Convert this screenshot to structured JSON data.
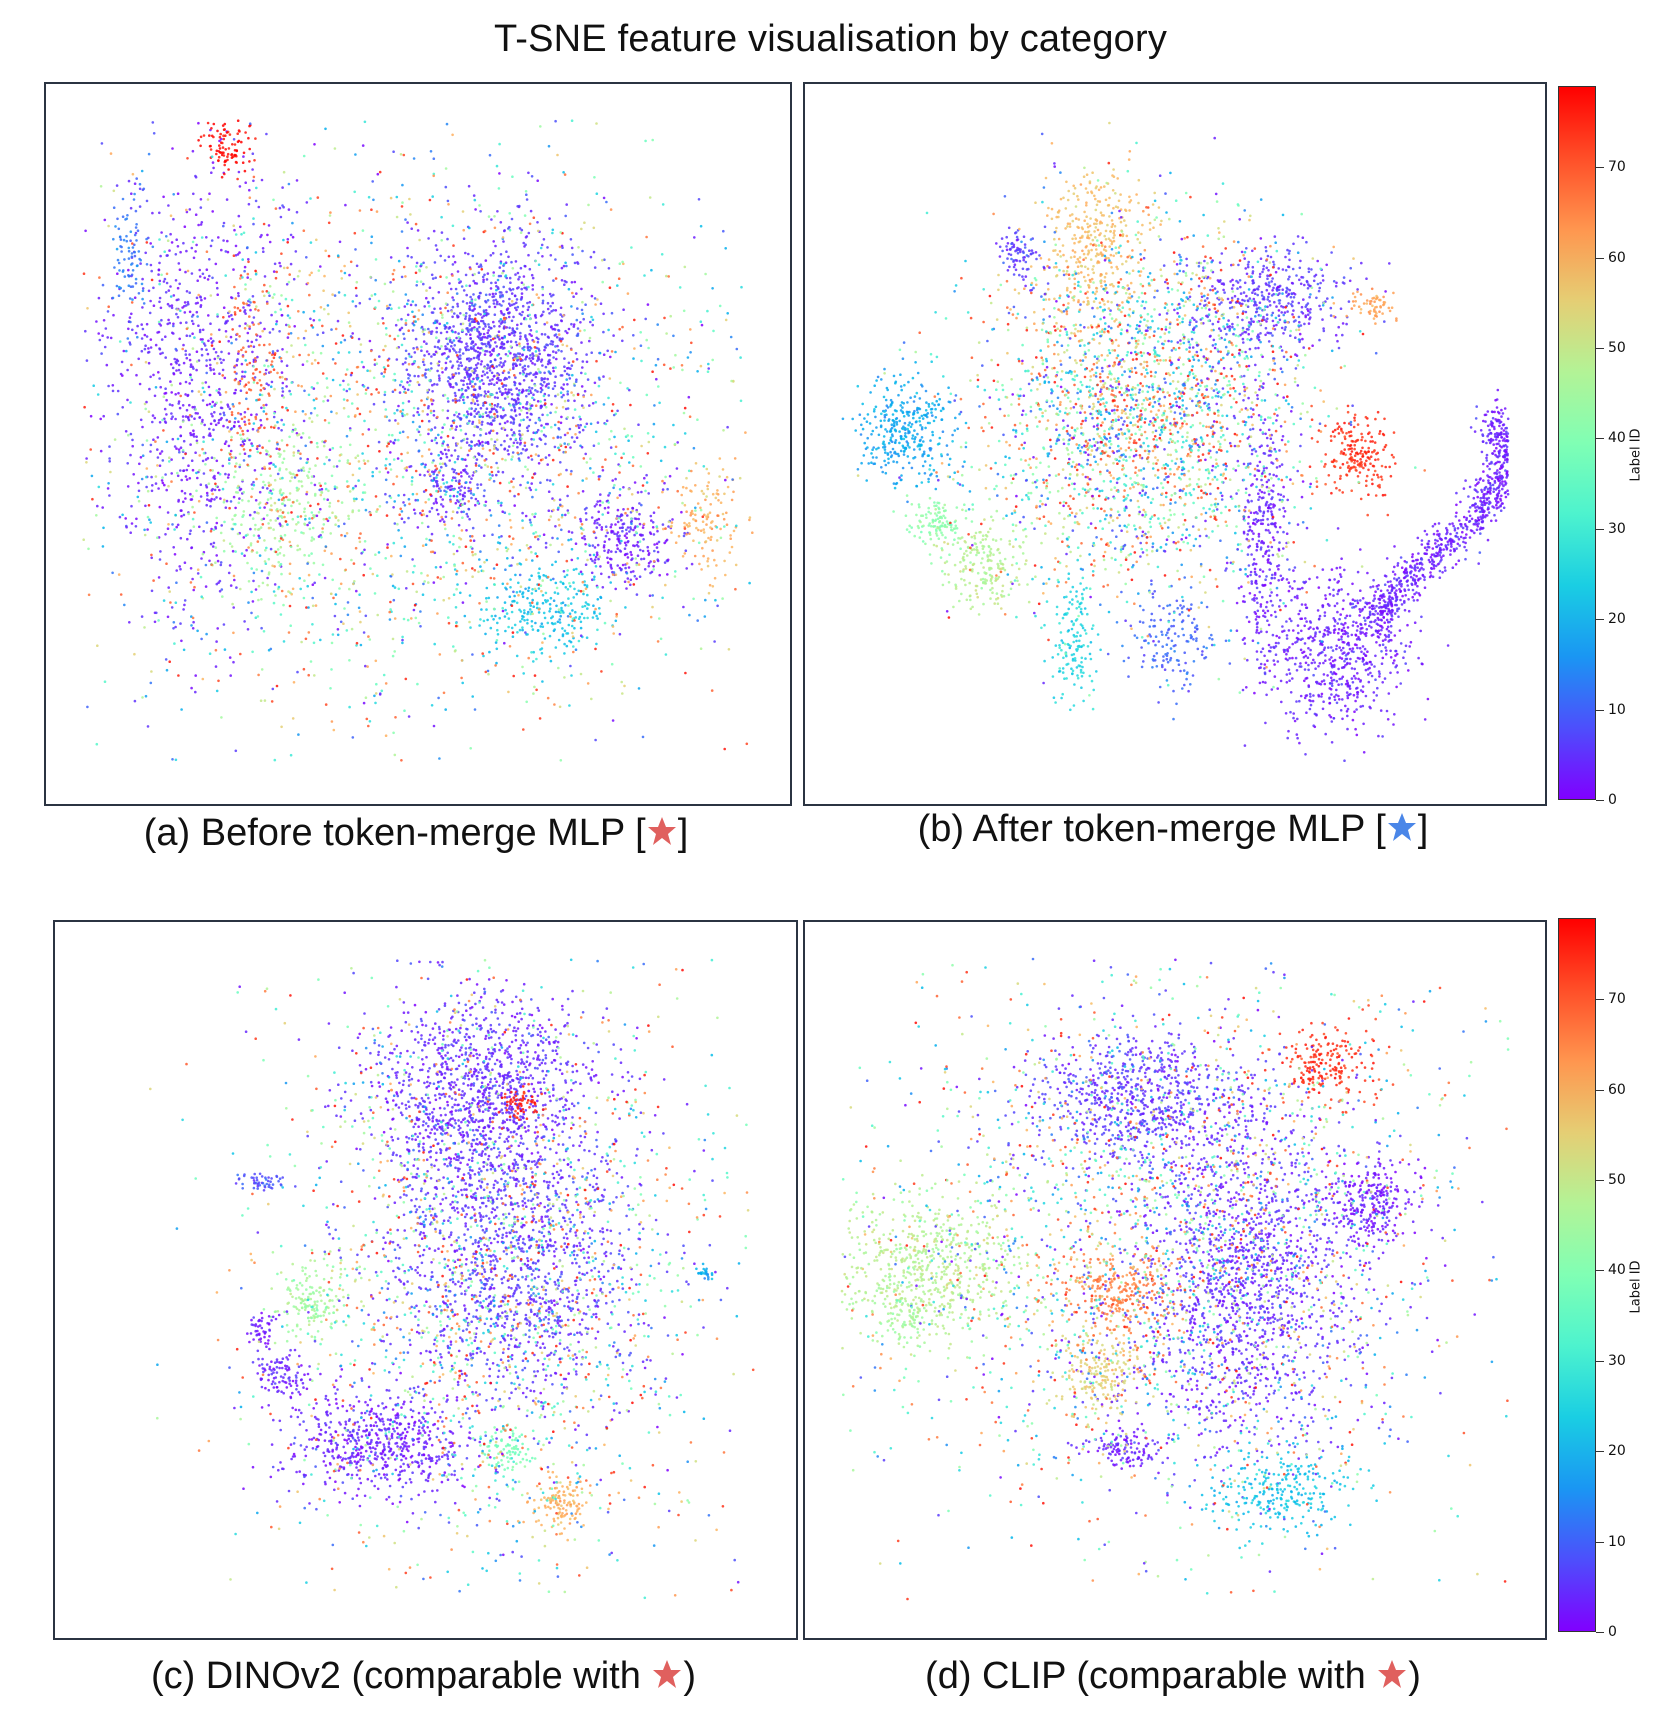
{
  "figure": {
    "title": "T-SNE feature visualisation by category",
    "colors": {
      "red_star": "#e0605e",
      "blue_star": "#4a86e8",
      "frame": "#2b3442"
    }
  },
  "chart_data": [
    {
      "type": "scatter",
      "panel": "a",
      "caption_text": "(a) Before token-merge MLP [",
      "caption_end": "]",
      "star_color": "red",
      "title": "",
      "xlabel": "",
      "ylabel": "",
      "xlim": [
        0,
        100
      ],
      "ylim": [
        0,
        100
      ],
      "grid": false,
      "clusters": [
        {
          "label": 5,
          "x": 62,
          "y": 63,
          "sx": 7,
          "sy": 9,
          "n": 1400
        },
        {
          "label": 3,
          "x": 18,
          "y": 60,
          "sx": 7,
          "sy": 18,
          "n": 900
        },
        {
          "label": 4,
          "x": 55,
          "y": 43,
          "sx": 3,
          "sy": 3,
          "n": 120
        },
        {
          "label": 3,
          "x": 80,
          "y": 36,
          "sx": 4,
          "sy": 4,
          "n": 260
        },
        {
          "label": 22,
          "x": 68,
          "y": 25,
          "sx": 5,
          "sy": 4,
          "n": 260
        },
        {
          "label": 45,
          "x": 30,
          "y": 40,
          "sx": 6,
          "sy": 6,
          "n": 220
        },
        {
          "label": 60,
          "x": 92,
          "y": 38,
          "sx": 3,
          "sy": 4,
          "n": 120
        },
        {
          "label": 78,
          "x": 22,
          "y": 95,
          "sx": 2,
          "sy": 2,
          "n": 90
        },
        {
          "label": 70,
          "x": 26,
          "y": 60,
          "sx": 2,
          "sy": 10,
          "n": 120
        },
        {
          "label": 12,
          "x": 8,
          "y": 78,
          "sx": 1.5,
          "sy": 5,
          "n": 90
        },
        {
          "label": 40,
          "x": 50,
          "y": 50,
          "sx": 24,
          "sy": 22,
          "n": 2400,
          "random": true
        }
      ]
    },
    {
      "type": "scatter",
      "panel": "b",
      "caption_text": "(b) After token-merge MLP [",
      "caption_end": "]",
      "star_color": "blue",
      "title": "",
      "xlabel": "",
      "ylabel": "",
      "xlim": [
        0,
        100
      ],
      "ylim": [
        0,
        100
      ],
      "grid": false,
      "colorbar": {
        "label": "Label ID",
        "ticks": [
          "0",
          "10",
          "20",
          "30",
          "40",
          "50",
          "60",
          "70"
        ],
        "range": [
          0,
          79
        ]
      },
      "clusters": [
        {
          "label": 3,
          "x": 74,
          "y": 18,
          "sx": 5,
          "sy": 6,
          "n": 600
        },
        {
          "label": 3,
          "x": 89,
          "y": 40,
          "sx": 3,
          "sy": 22,
          "n": 900,
          "curve": true
        },
        {
          "label": 3,
          "x": 63,
          "y": 35,
          "sx": 2,
          "sy": 10,
          "n": 350
        },
        {
          "label": 18,
          "x": 10,
          "y": 52,
          "sx": 4,
          "sy": 4,
          "n": 350
        },
        {
          "label": 48,
          "x": 22,
          "y": 32,
          "sx": 3,
          "sy": 3,
          "n": 200
        },
        {
          "label": 42,
          "x": 15,
          "y": 38,
          "sx": 2,
          "sy": 2,
          "n": 120
        },
        {
          "label": 58,
          "x": 38,
          "y": 80,
          "sx": 4,
          "sy": 6,
          "n": 350
        },
        {
          "label": 5,
          "x": 64,
          "y": 72,
          "sx": 6,
          "sy": 4,
          "n": 420
        },
        {
          "label": 74,
          "x": 77,
          "y": 48,
          "sx": 2.5,
          "sy": 3,
          "n": 200
        },
        {
          "label": 6,
          "x": 27,
          "y": 79,
          "sx": 1.5,
          "sy": 2,
          "n": 80
        },
        {
          "label": 62,
          "x": 79,
          "y": 71,
          "sx": 2,
          "sy": 1,
          "n": 60
        },
        {
          "label": 25,
          "x": 35,
          "y": 20,
          "sx": 2,
          "sy": 5,
          "n": 150
        },
        {
          "label": 10,
          "x": 50,
          "y": 20,
          "sx": 3,
          "sy": 4,
          "n": 150
        },
        {
          "label": 40,
          "x": 45,
          "y": 55,
          "sx": 12,
          "sy": 14,
          "n": 2600,
          "random": true
        }
      ]
    },
    {
      "type": "scatter",
      "panel": "c",
      "caption_text": "(c) DINOv2 (comparable with ",
      "caption_end": ")",
      "star_color": "red",
      "title": "",
      "xlabel": "",
      "ylabel": "",
      "xlim": [
        0,
        100
      ],
      "ylim": [
        0,
        100
      ],
      "grid": false,
      "clusters": [
        {
          "label": 4,
          "x": 58,
          "y": 78,
          "sx": 8,
          "sy": 8,
          "n": 1200
        },
        {
          "label": 5,
          "x": 63,
          "y": 52,
          "sx": 9,
          "sy": 10,
          "n": 1100
        },
        {
          "label": 3,
          "x": 43,
          "y": 25,
          "sx": 7,
          "sy": 4,
          "n": 600
        },
        {
          "label": 45,
          "x": 33,
          "y": 47,
          "sx": 2.5,
          "sy": 3,
          "n": 160
        },
        {
          "label": 3,
          "x": 29,
          "y": 35,
          "sx": 2,
          "sy": 2,
          "n": 100
        },
        {
          "label": 2,
          "x": 26,
          "y": 43,
          "sx": 1.2,
          "sy": 1.2,
          "n": 50
        },
        {
          "label": 60,
          "x": 70,
          "y": 16,
          "sx": 2,
          "sy": 2,
          "n": 120
        },
        {
          "label": 38,
          "x": 62,
          "y": 24,
          "sx": 2,
          "sy": 2,
          "n": 90
        },
        {
          "label": 76,
          "x": 64,
          "y": 77,
          "sx": 1.5,
          "sy": 1,
          "n": 60
        },
        {
          "label": 8,
          "x": 26,
          "y": 65,
          "sx": 2,
          "sy": 0.8,
          "n": 50
        },
        {
          "label": 18,
          "x": 91,
          "y": 51,
          "sx": 0.6,
          "sy": 0.6,
          "n": 25
        },
        {
          "label": 40,
          "x": 60,
          "y": 50,
          "sx": 16,
          "sy": 24,
          "n": 2000,
          "random": true
        }
      ]
    },
    {
      "type": "scatter",
      "panel": "d",
      "caption_text": "(d) CLIP (comparable with ",
      "caption_end": ")",
      "star_color": "red",
      "title": "",
      "xlabel": "",
      "ylabel": "",
      "xlim": [
        0,
        100
      ],
      "ylim": [
        0,
        100
      ],
      "grid": false,
      "colorbar": {
        "label": "Label ID",
        "ticks": [
          "0",
          "10",
          "20",
          "30",
          "40",
          "50",
          "60",
          "70"
        ],
        "range": [
          0,
          79
        ]
      },
      "clusters": [
        {
          "label": 4,
          "x": 60,
          "y": 50,
          "sx": 9,
          "sy": 14,
          "n": 1500
        },
        {
          "label": 48,
          "x": 14,
          "y": 52,
          "sx": 7,
          "sy": 5,
          "n": 600
        },
        {
          "label": 66,
          "x": 42,
          "y": 48,
          "sx": 4,
          "sy": 3,
          "n": 260
        },
        {
          "label": 55,
          "x": 39,
          "y": 36,
          "sx": 3,
          "sy": 3,
          "n": 180
        },
        {
          "label": 2,
          "x": 79,
          "y": 62,
          "sx": 3,
          "sy": 3,
          "n": 240
        },
        {
          "label": 22,
          "x": 65,
          "y": 18,
          "sx": 5,
          "sy": 3,
          "n": 260
        },
        {
          "label": 5,
          "x": 45,
          "y": 78,
          "sx": 8,
          "sy": 5,
          "n": 700
        },
        {
          "label": 74,
          "x": 72,
          "y": 83,
          "sx": 4,
          "sy": 3,
          "n": 200
        },
        {
          "label": 3,
          "x": 42,
          "y": 24,
          "sx": 3,
          "sy": 1.5,
          "n": 120
        },
        {
          "label": 45,
          "x": 10,
          "y": 44,
          "sx": 2,
          "sy": 2,
          "n": 80
        },
        {
          "label": 40,
          "x": 48,
          "y": 55,
          "sx": 22,
          "sy": 22,
          "n": 2400,
          "random": true
        }
      ]
    }
  ]
}
